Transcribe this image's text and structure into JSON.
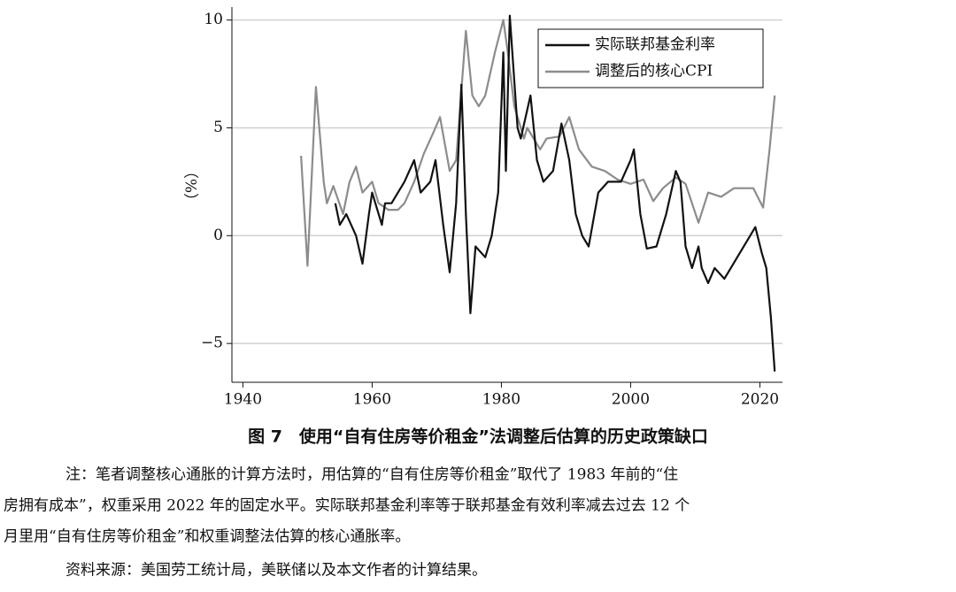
{
  "chart_data": {
    "type": "line",
    "xlim": [
      1938.3,
      2023.5
    ],
    "xticks": [
      1940,
      1960,
      1980,
      2000,
      2020
    ],
    "ylim": [
      -6.8,
      10.6
    ],
    "yticks": [
      {
        "value": -5,
        "label": "−5"
      },
      0,
      5,
      10
    ],
    "ylabel": "（%）",
    "grid": true,
    "legend": "top-right",
    "series": [
      {
        "name": "实际联邦基金利率",
        "color": "#111111",
        "x": [
          1954.3,
          1955,
          1956,
          1957.5,
          1958.5,
          1959.5,
          1960,
          1961.5,
          1962,
          1963,
          1964,
          1965,
          1966.5,
          1967.5,
          1969,
          1969.8,
          1971,
          1972,
          1973,
          1973.8,
          1974.5,
          1975.2,
          1976,
          1977.5,
          1978.5,
          1979.5,
          1980.3,
          1980.7,
          1981.3,
          1982.5,
          1983,
          1984.5,
          1985.5,
          1986.5,
          1988,
          1989.3,
          1990.5,
          1991.5,
          1992.5,
          1993.5,
          1995,
          1996.5,
          1998.5,
          2000,
          2000.5,
          2001.5,
          2002.5,
          2004,
          2005.5,
          2007,
          2007.7,
          2008.5,
          2009.5,
          2010.5,
          2011,
          2012,
          2013,
          2014.5,
          2015.5,
          2016.5,
          2018.5,
          2019.3,
          2020.3,
          2021,
          2021.7,
          2022.3
        ],
        "values": [
          1.5,
          0.5,
          1.0,
          0.0,
          -1.3,
          1.0,
          2.0,
          0.5,
          1.5,
          1.5,
          2.0,
          2.5,
          3.5,
          2.0,
          2.5,
          3.5,
          0.5,
          -1.7,
          1.5,
          7.0,
          1.0,
          -3.6,
          -0.5,
          -1.0,
          0.0,
          2.0,
          8.5,
          3.0,
          10.2,
          5.0,
          4.5,
          6.5,
          3.5,
          2.5,
          3.0,
          5.2,
          3.5,
          1.0,
          0.0,
          -0.5,
          2.0,
          2.5,
          2.5,
          3.5,
          4.0,
          1.0,
          -0.6,
          -0.5,
          1.0,
          3.0,
          2.5,
          -0.5,
          -1.5,
          -0.5,
          -1.5,
          -2.2,
          -1.5,
          -2.0,
          -1.5,
          -1.0,
          0.0,
          0.4,
          -0.8,
          -1.5,
          -3.8,
          -6.3
        ]
      },
      {
        "name": "调整后的核心CPI",
        "color": "#8c8c8c",
        "x": [
          1949,
          1950,
          1951.3,
          1952.5,
          1953,
          1954,
          1955.5,
          1956.5,
          1957.5,
          1958.5,
          1960,
          1961,
          1962.5,
          1964,
          1965,
          1966.5,
          1968,
          1969.5,
          1970.5,
          1972,
          1973,
          1974.5,
          1975.5,
          1976.5,
          1977.5,
          1979,
          1980.3,
          1981,
          1982,
          1983.5,
          1984,
          1986,
          1987,
          1989,
          1990.5,
          1992,
          1994,
          1996,
          1998,
          2000,
          2002,
          2003.5,
          2005,
          2007,
          2008.5,
          2010.5,
          2012,
          2014,
          2016,
          2019,
          2020.5,
          2021.5,
          2022.3
        ],
        "values": [
          3.7,
          -1.4,
          6.9,
          2.5,
          1.5,
          2.3,
          1.0,
          2.5,
          3.2,
          2.0,
          2.5,
          1.5,
          1.2,
          1.2,
          1.5,
          2.5,
          3.8,
          4.8,
          5.5,
          3.0,
          3.5,
          9.5,
          6.5,
          6.0,
          6.5,
          8.5,
          10.0,
          8.5,
          6.0,
          4.5,
          5.0,
          4.0,
          4.5,
          4.6,
          5.5,
          4.0,
          3.2,
          3.0,
          2.6,
          2.4,
          2.6,
          1.6,
          2.2,
          2.7,
          2.4,
          0.6,
          2.0,
          1.8,
          2.2,
          2.2,
          1.3,
          4.0,
          6.5
        ]
      }
    ]
  },
  "caption": "图 7　使用“自有住房等价租金”法调整后估算的历史政策缺口",
  "note": [
    "注：笔者调整核心通胀的计算方法时，用估算的“自有住房等价租金”取代了 1983 年前的“住",
    "房拥有成本”，权重采用 2022 年的固定水平。实际联邦基金利率等于联邦基金有效利率减去过去 12 个",
    "月里用“自有住房等价租金”和权重调整法估算的核心通胀率。"
  ],
  "source": "资料来源：美国劳工统计局，美联储以及本文作者的计算结果。"
}
